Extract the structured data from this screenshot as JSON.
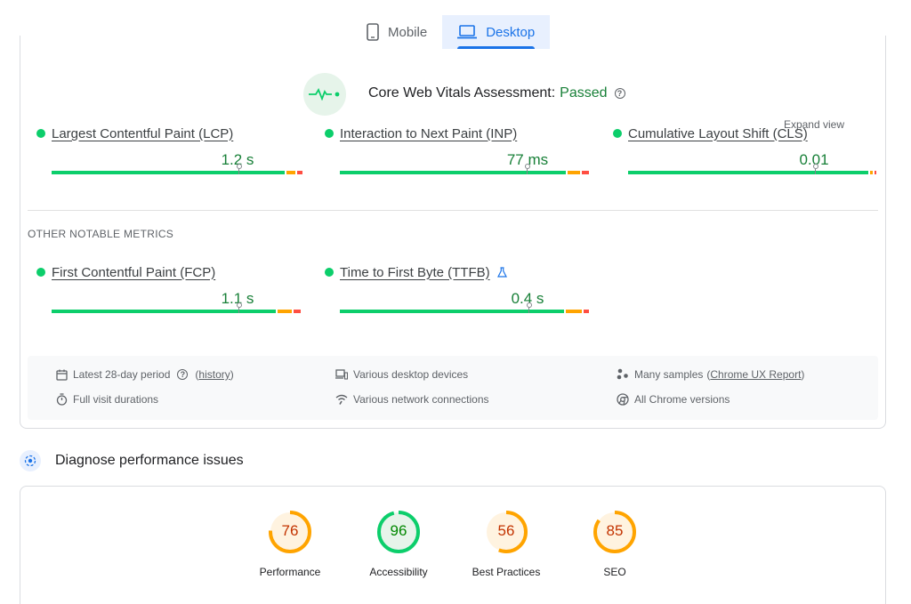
{
  "tabs": [
    {
      "label": "Mobile",
      "icon": "phone-icon",
      "active": false
    },
    {
      "label": "Desktop",
      "icon": "laptop-icon",
      "active": true
    }
  ],
  "assessment": {
    "title": "Core Web Vitals Assessment:",
    "status": "Passed",
    "expand_label": "Expand view",
    "colors": {
      "good": "#0cce6b",
      "average": "#ffa400",
      "poor": "#ff4e42",
      "status_text": "#188038"
    }
  },
  "core_metrics": [
    {
      "name": "Largest Contentful Paint (LCP)",
      "value": "1.2 s"
    },
    {
      "name": "Interaction to Next Paint (INP)",
      "value": "77 ms"
    },
    {
      "name": "Cumulative Layout Shift (CLS)",
      "value": "0.01"
    }
  ],
  "other_metrics_heading": "OTHER NOTABLE METRICS",
  "other_metrics": [
    {
      "name": "First Contentful Paint (FCP)",
      "value": "1.1 s"
    },
    {
      "name": "Time to First Byte (TTFB)",
      "value": "0.4 s",
      "badge_icon": "flask-icon"
    }
  ],
  "info": {
    "period": "Latest 28-day period",
    "history_link": "history",
    "visit": "Full visit durations",
    "devices": "Various desktop devices",
    "network": "Various network connections",
    "samples": "Many samples",
    "crux_link": "Chrome UX Report",
    "chrome": "All Chrome versions"
  },
  "diagnose": {
    "title": "Diagnose performance issues"
  },
  "scores": [
    {
      "label": "Performance",
      "value": "76",
      "score": 76,
      "color": "#ffa400",
      "text_color": "#c33300",
      "bg": "#fff3e0"
    },
    {
      "label": "Accessibility",
      "value": "96",
      "score": 96,
      "color": "#0cce6b",
      "text_color": "#008800",
      "bg": "#e6f4ea"
    },
    {
      "label": "Best Practices",
      "value": "56",
      "score": 56,
      "color": "#ffa400",
      "text_color": "#c33300",
      "bg": "#fff3e0"
    },
    {
      "label": "SEO",
      "value": "85",
      "score": 85,
      "color": "#ffa400",
      "text_color": "#c33300",
      "bg": "#fff3e0"
    }
  ]
}
